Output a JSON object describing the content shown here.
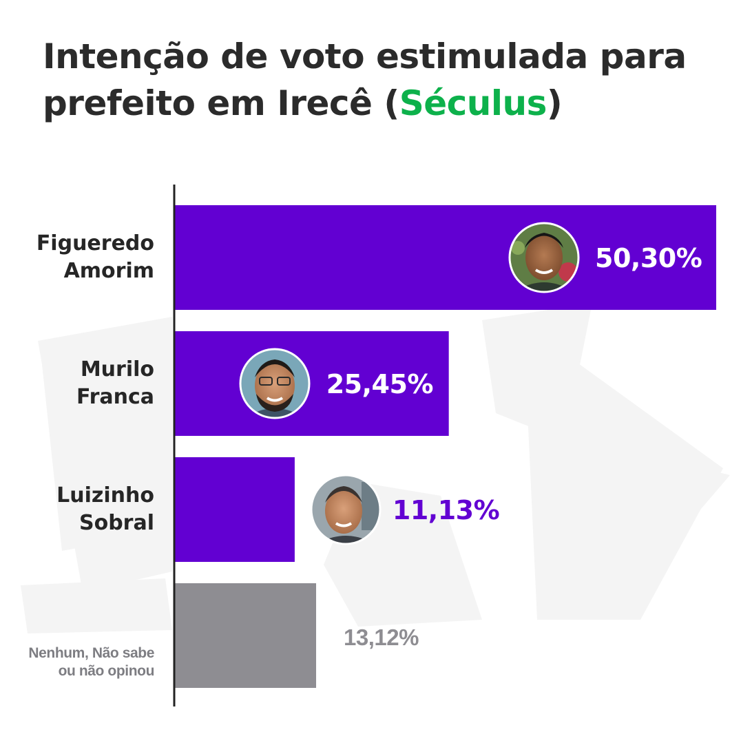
{
  "title": {
    "line1": "Intenção de voto estimulada para",
    "line2_prefix": "prefeito em Irecê (",
    "line2_accent": "Séculus",
    "line2_suffix": ")"
  },
  "colors": {
    "accent": "#0db14b",
    "bar_candidate": "#6200d2",
    "bar_other": "#8e8d92",
    "label_on_bar": "#ffffff",
    "label_off_bar": "#6200d2",
    "label_other": "#8e8d92",
    "axis": "#222222"
  },
  "chart_data": {
    "type": "bar",
    "orientation": "horizontal",
    "title": "Intenção de voto estimulada para prefeito em Irecê (Séculus)",
    "categories": [
      [
        "Figueredo",
        "Amorim"
      ],
      [
        "Murilo",
        "Franca"
      ],
      [
        "Luizinho",
        "Sobral"
      ],
      [
        "Nenhum, Não sabe",
        "ou não opinou"
      ]
    ],
    "values": [
      50.3,
      25.45,
      11.13,
      13.12
    ],
    "value_labels": [
      "50,30%",
      "25,45%",
      "11,13%",
      "13,12%"
    ],
    "avatars": [
      "candidate-photo-figueredo",
      "candidate-photo-murilo",
      "candidate-photo-luizinho",
      ""
    ],
    "xlim": [
      0,
      50.3
    ],
    "grid": false,
    "legend": "none"
  }
}
